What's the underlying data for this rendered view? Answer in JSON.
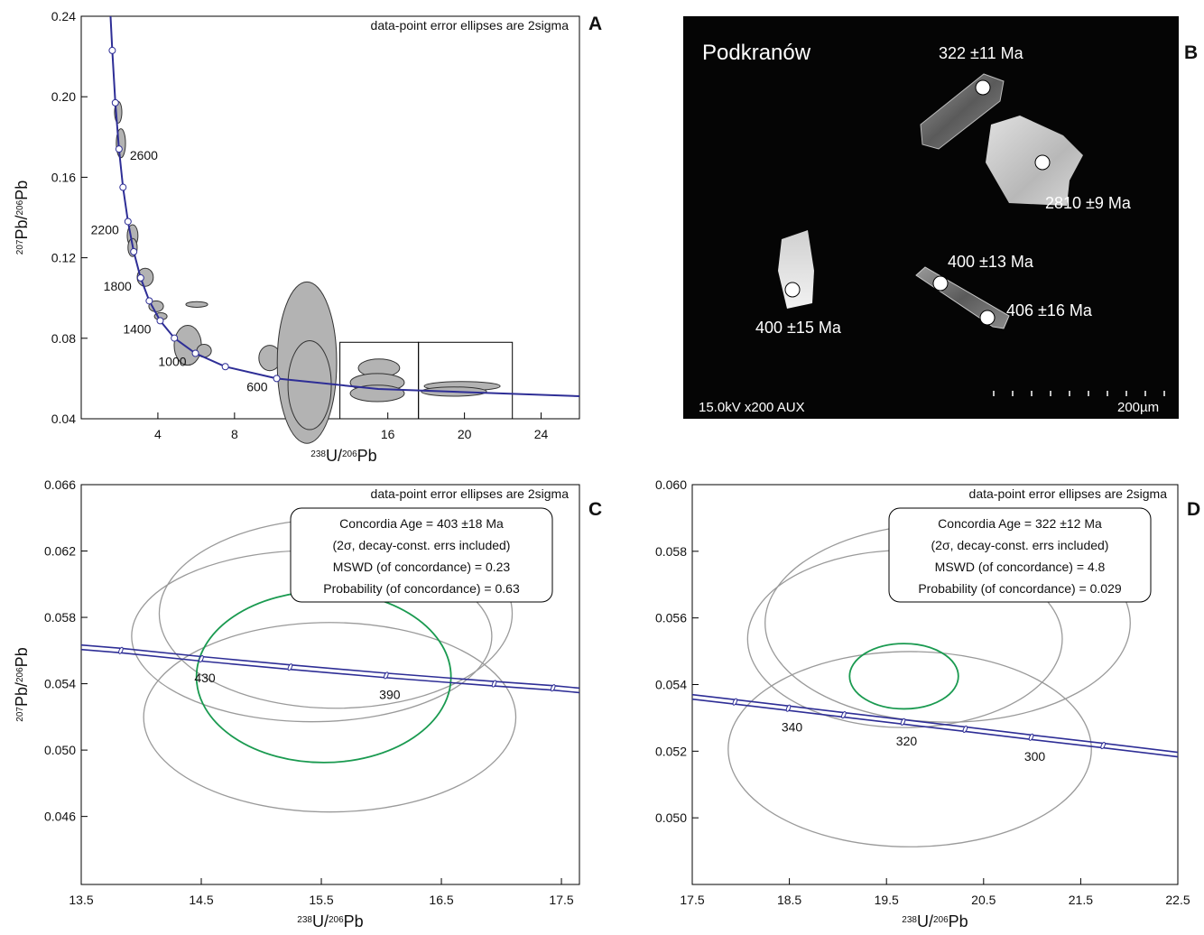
{
  "chart_data": [
    {
      "type": "concordia",
      "panel": "A",
      "note": "data-point error ellipses are 2sigma",
      "xlabel": [
        "238",
        "U/",
        "206",
        "Pb"
      ],
      "ylabel": [
        "207",
        "Pb/",
        "206",
        "Pb"
      ],
      "xlim": [
        0,
        26
      ],
      "ylim": [
        0.04,
        0.24
      ],
      "xticks": [
        4,
        8,
        16,
        20,
        24
      ],
      "yticks": [
        0.04,
        0.08,
        0.12,
        0.16,
        {
          "value": 0.2,
          "label": "0.20"
        },
        0.24
      ],
      "concordia": {
        "color": "#2e2e96",
        "x": [
          1.53,
          1.62,
          1.78,
          1.97,
          2.18,
          2.44,
          2.74,
          3.1,
          3.55,
          4.12,
          4.86,
          5.96,
          7.52,
          10.2,
          15.5,
          26.0
        ],
        "y": [
          0.24,
          0.223,
          0.197,
          0.174,
          0.155,
          0.138,
          0.123,
          0.11,
          0.0986,
          0.0887,
          0.0801,
          0.0725,
          0.0659,
          0.06,
          0.0548,
          0.0512
        ]
      },
      "concordia_ticks": {
        "x": [
          1.62,
          1.78,
          1.97,
          2.18,
          2.44,
          2.74,
          3.1,
          3.55,
          4.12,
          4.86,
          5.96,
          7.52,
          10.2
        ],
        "y": [
          0.223,
          0.197,
          0.174,
          0.155,
          0.138,
          0.123,
          0.11,
          0.0986,
          0.0887,
          0.0801,
          0.0725,
          0.0659,
          0.06
        ],
        "labels": [
          null,
          null,
          2600,
          null,
          2200,
          null,
          1800,
          null,
          1400,
          null,
          1000,
          null,
          600
        ]
      },
      "ellipses": {
        "fill": "#b3b3b3",
        "stroke": "#333333",
        "x": [
          1.93,
          2.07,
          2.68,
          2.68,
          3.34,
          3.91,
          4.15,
          5.56,
          6.41,
          6.03,
          9.84,
          11.78,
          11.92,
          15.54,
          15.45,
          15.45,
          19.88,
          19.45
        ],
        "y": [
          0.1923,
          0.1769,
          0.131,
          0.1251,
          0.1103,
          0.0959,
          0.0909,
          0.0765,
          0.0738,
          0.0968,
          0.0702,
          0.0679,
          0.0567,
          0.0652,
          0.058,
          0.0526,
          0.0562,
          0.0535
        ],
        "rx": [
          0.19,
          0.24,
          0.28,
          0.24,
          0.42,
          0.38,
          0.33,
          0.71,
          0.38,
          0.57,
          0.57,
          1.55,
          1.13,
          1.08,
          1.41,
          1.41,
          1.98,
          1.7
        ],
        "ry": [
          0.0054,
          0.0072,
          0.0054,
          0.0045,
          0.0045,
          0.0027,
          0.0018,
          0.0099,
          0.0032,
          0.0014,
          0.0063,
          0.0401,
          0.0221,
          0.0045,
          0.0045,
          0.0041,
          0.0023,
          0.0023
        ]
      },
      "zoom_boxes": [
        {
          "xlim": [
            13.5,
            17.6
          ],
          "ylim": [
            0.04,
            0.078
          ]
        },
        {
          "xlim": [
            17.6,
            22.5
          ],
          "ylim": [
            0.04,
            0.078
          ]
        }
      ]
    },
    {
      "type": "concordia",
      "panel": "C",
      "note": "data-point error ellipses are 2sigma",
      "xlabel": [
        "238",
        "U/",
        "206",
        "Pb"
      ],
      "ylabel": [
        "207",
        "Pb/",
        "206",
        "Pb"
      ],
      "xlim": [
        13.5,
        17.65
      ],
      "ylim": [
        0.0419,
        0.066
      ],
      "xticks": [
        13.5,
        14.5,
        15.5,
        16.5,
        17.5
      ],
      "yticks": [
        0.046,
        {
          "value": 0.05,
          "label": "0.050"
        },
        0.054,
        0.058,
        0.062,
        0.066
      ],
      "concordia_band": true,
      "concordia": {
        "color": "#2e2e96",
        "x": [
          13.5,
          13.83,
          14.5,
          15.24,
          16.04,
          16.94,
          17.43,
          17.65
        ],
        "y": [
          0.0562,
          0.056,
          0.0555,
          0.055,
          0.0545,
          0.054,
          0.05375,
          0.0536
        ]
      },
      "concordia_ticks": {
        "x": [
          13.83,
          14.5,
          15.24,
          16.04,
          16.94,
          17.43
        ],
        "y": [
          0.056,
          0.0555,
          0.055,
          0.0545,
          0.054,
          0.05375
        ],
        "labels": [
          null,
          430,
          null,
          390,
          null,
          null
        ]
      },
      "ellipses": {
        "stroke": "#9a9a9a",
        "x": [
          15.42,
          15.62,
          15.57
        ],
        "y": [
          0.05687,
          0.05823,
          0.05198
        ],
        "rx": [
          1.5,
          1.47,
          1.55
        ],
        "ry": [
          0.00516,
          0.00571,
          0.00571
        ]
      },
      "age_ellipse": {
        "x": 15.52,
        "y": 0.05441,
        "rx": 1.06,
        "ry": 0.00516,
        "color": "#1a9a50"
      },
      "summary": [
        "Concordia Age = 403 ±18 Ma",
        "(2σ, decay-const. errs included)",
        "MSWD (of concordance) = 0.23",
        "Probability (of concordance) = 0.63"
      ]
    },
    {
      "type": "concordia",
      "panel": "D",
      "note": "data-point error ellipses are 2sigma",
      "xlabel": [
        "238",
        "U/",
        "206",
        "Pb"
      ],
      "xlim": [
        17.5,
        22.5
      ],
      "ylim": [
        0.048,
        0.06
      ],
      "xticks": [
        17.5,
        18.5,
        19.5,
        20.5,
        21.5,
        22.5
      ],
      "yticks": [
        {
          "value": 0.05,
          "label": "0.050"
        },
        0.052,
        0.054,
        0.056,
        0.058,
        {
          "value": 0.06,
          "label": "0.060"
        }
      ],
      "concordia_band": true,
      "concordia": {
        "color": "#2e2e96",
        "x": [
          17.5,
          17.94,
          18.49,
          19.06,
          19.67,
          20.31,
          20.99,
          21.73,
          22.5
        ],
        "y": [
          0.05363,
          0.05348,
          0.05329,
          0.05309,
          0.05288,
          0.05266,
          0.05242,
          0.05217,
          0.0519
        ]
      },
      "concordia_ticks": {
        "x": [
          17.94,
          18.49,
          19.06,
          19.67,
          20.31,
          20.99,
          21.73
        ],
        "y": [
          0.05348,
          0.05329,
          0.05309,
          0.05288,
          0.05266,
          0.05242,
          0.05217
        ],
        "labels": [
          null,
          340,
          null,
          320,
          null,
          300,
          null
        ]
      },
      "ellipses": {
        "stroke": "#9a9a9a",
        "x": [
          20.13,
          19.69,
          19.74
        ],
        "y": [
          0.05585,
          0.05537,
          0.05206
        ],
        "rx": [
          1.88,
          1.62,
          1.87
        ],
        "ry": [
          0.00298,
          0.00266,
          0.00293
        ]
      },
      "age_ellipse": {
        "x": 19.68,
        "y": 0.05425,
        "rx": 0.56,
        "ry": 0.00098,
        "color": "#1a9a50"
      },
      "summary": [
        "Concordia Age = 322 ±12 Ma",
        "(2σ, decay-const. errs included)",
        "MSWD (of concordance) = 4.8",
        "Probability (of concordance) = 0.029"
      ]
    }
  ],
  "image_panel": {
    "panel": "B",
    "location": "Podkranów",
    "ages": [
      "322 ±11 Ma",
      "2810 ±9 Ma",
      "400 ±13 Ma",
      "406 ±16 Ma",
      "400 ±15 Ma"
    ],
    "footer": "15.0kV x200 AUX",
    "scale": "200µm"
  }
}
